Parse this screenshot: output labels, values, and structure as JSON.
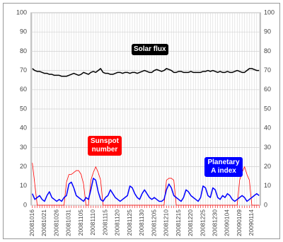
{
  "chart_data": {
    "type": "line",
    "categories": [
      "20081016",
      null,
      null,
      null,
      null,
      "20081021",
      null,
      null,
      null,
      null,
      "20081026",
      null,
      null,
      null,
      null,
      "20081031",
      null,
      null,
      null,
      null,
      "20081105",
      null,
      null,
      null,
      null,
      "20081110",
      null,
      null,
      null,
      null,
      "20081115",
      null,
      null,
      null,
      null,
      "20081120",
      null,
      null,
      null,
      null,
      "20081125",
      null,
      null,
      null,
      null,
      "20081130",
      null,
      null,
      null,
      null,
      "20081205",
      null,
      null,
      null,
      null,
      "20081210",
      null,
      null,
      null,
      null,
      "20081215",
      null,
      null,
      null,
      null,
      "20081220",
      null,
      null,
      null,
      null,
      "20081225",
      null,
      null,
      null,
      null,
      "20081230",
      null,
      null,
      null,
      null,
      "20090104",
      null,
      null,
      null,
      null,
      "20090109",
      null,
      null,
      null,
      null,
      "20090114",
      null,
      null,
      null
    ],
    "series": [
      {
        "name": "Solar flux",
        "color": "#000000",
        "values": [
          71,
          70,
          69.5,
          69.5,
          69,
          68.5,
          68.5,
          68,
          68,
          67.5,
          67.5,
          67.5,
          67,
          67,
          67,
          67.5,
          68,
          68.5,
          68,
          67.5,
          68,
          69,
          68.5,
          68,
          69,
          69.5,
          69,
          70,
          71,
          69,
          68.5,
          68.5,
          68,
          68,
          68.5,
          69,
          69,
          68.5,
          69,
          69,
          68.5,
          69,
          69,
          68.5,
          69,
          69.5,
          70,
          69.5,
          69,
          69,
          70,
          70.5,
          70,
          69.5,
          70,
          71,
          70.5,
          70,
          69,
          69,
          69.5,
          69.5,
          69,
          69,
          69,
          69.5,
          69,
          69,
          69,
          69,
          69.5,
          69.5,
          70,
          69.5,
          70,
          69.5,
          69,
          69.5,
          69,
          69,
          69.5,
          69,
          69,
          69.5,
          70,
          69.5,
          69,
          69,
          70,
          71,
          71,
          70.5,
          70,
          70
        ]
      },
      {
        "name": "Sunspot number",
        "color": "#ff0000",
        "values": [
          22,
          11,
          0,
          0,
          0,
          0,
          0,
          0,
          0,
          0,
          0,
          0,
          0,
          0,
          12,
          16,
          16,
          17,
          18,
          18,
          16,
          11,
          0,
          0,
          13,
          17,
          20,
          17,
          13,
          0,
          0,
          0,
          0,
          0,
          0,
          0,
          0,
          0,
          0,
          0,
          0,
          0,
          0,
          0,
          0,
          0,
          0,
          0,
          0,
          0,
          0,
          0,
          0,
          0,
          0,
          13,
          14,
          14,
          13,
          0,
          0,
          0,
          0,
          0,
          0,
          0,
          0,
          0,
          0,
          0,
          0,
          0,
          0,
          0,
          0,
          0,
          0,
          0,
          0,
          0,
          0,
          0,
          0,
          0,
          0,
          13,
          17,
          20,
          16,
          13,
          0,
          0,
          0,
          0
        ]
      },
      {
        "name": "Planetary A index",
        "color": "#0000ff",
        "values": [
          6,
          3,
          4,
          5,
          3,
          2,
          5,
          7,
          4,
          3,
          2,
          3,
          2,
          4,
          5,
          11,
          12,
          9,
          5,
          4,
          3,
          2,
          4,
          3,
          8,
          14,
          13,
          7,
          3,
          2,
          4,
          5,
          8,
          6,
          4,
          3,
          2,
          3,
          4,
          5,
          10,
          9,
          6,
          4,
          3,
          6,
          8,
          6,
          4,
          3,
          4,
          3,
          2,
          2,
          3,
          8,
          11,
          9,
          5,
          4,
          3,
          2,
          4,
          8,
          7,
          5,
          4,
          3,
          2,
          4,
          10,
          9,
          5,
          4,
          9,
          8,
          4,
          3,
          5,
          4,
          6,
          5,
          3,
          2,
          3,
          4,
          5,
          4,
          2,
          3,
          4,
          5,
          6,
          5
        ]
      }
    ],
    "ylim": [
      0,
      100
    ],
    "yticks": [
      0,
      10,
      20,
      30,
      40,
      50,
      60,
      70,
      80,
      90,
      100
    ],
    "grid": true
  }
}
